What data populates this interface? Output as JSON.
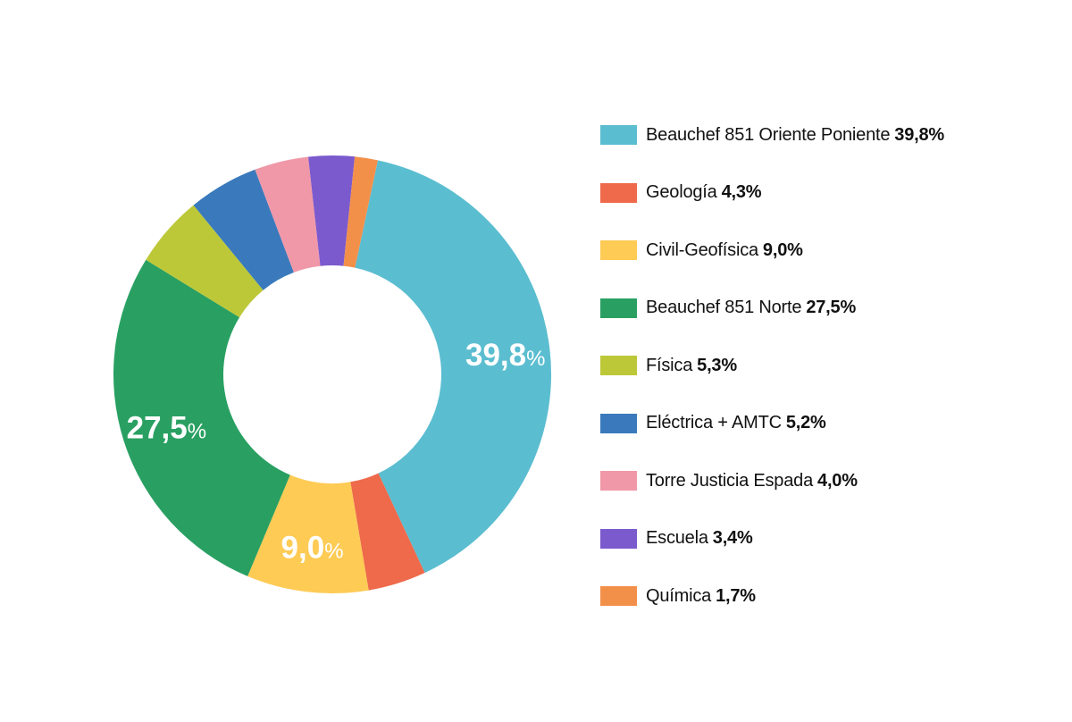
{
  "chart_data": {
    "type": "pie",
    "style": "donut",
    "legend_position": "right",
    "slices": [
      {
        "label": "Beauchef 851 Oriente Poniente",
        "value": 39.8,
        "value_text": "39,8%",
        "color": "#5BBDD0",
        "show_label": true,
        "label_number": "39,8",
        "label_suffix": "%"
      },
      {
        "label": "Geología",
        "value": 4.3,
        "value_text": "4,3%",
        "color": "#EE6A4B",
        "show_label": false
      },
      {
        "label": "Civil-Geofísica",
        "value": 9.0,
        "value_text": "9,0%",
        "color": "#FECB55",
        "show_label": true,
        "label_number": "9,0",
        "label_suffix": "%"
      },
      {
        "label": "Beauchef 851 Norte",
        "value": 27.5,
        "value_text": "27,5%",
        "color": "#29A062",
        "show_label": true,
        "label_number": "27,5",
        "label_suffix": "%"
      },
      {
        "label": "Física",
        "value": 5.3,
        "value_text": "5,3%",
        "color": "#BDC838",
        "show_label": false
      },
      {
        "label": "Eléctrica + AMTC",
        "value": 5.2,
        "value_text": "5,2%",
        "color": "#3A7ABC",
        "show_label": false
      },
      {
        "label": "Torre Justicia Espada",
        "value": 4.0,
        "value_text": "4,0%",
        "color": "#F098A8",
        "show_label": false
      },
      {
        "label": "Escuela",
        "value": 3.4,
        "value_text": "3,4%",
        "color": "#7B5ACD",
        "show_label": false
      },
      {
        "label": "Química",
        "value": 1.7,
        "value_text": "1,7%",
        "color": "#F2904A",
        "show_label": false
      }
    ]
  }
}
